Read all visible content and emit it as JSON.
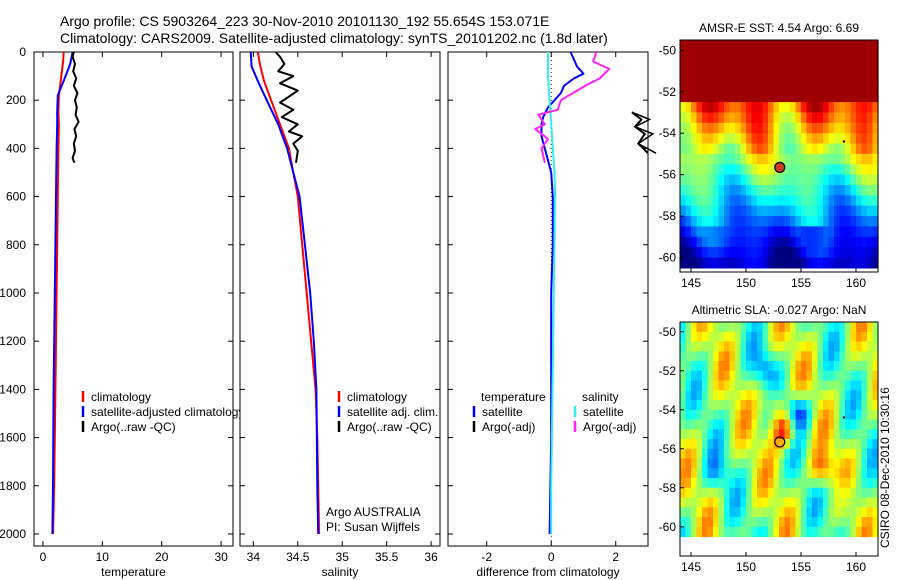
{
  "figure": {
    "title_line1": "Argo profile: CS 5903264_223 30-Nov-2010 20101130_192 55.654S 153.071E",
    "title_line2": "Climatology: CARS2009. Satellite-adjusted climatology: synTS_20101202.nc (1.8d later)",
    "footer": "CSIRO 08-Dec-2010 10:30:16"
  },
  "colors": {
    "climatology": "#ff0000",
    "satellite": "#0000ff",
    "argo": "#000000",
    "temp_satellite_diff": "#0000ff",
    "sal_satellite_diff": "#33eeee",
    "sal_argo_diff": "#ff22ff"
  },
  "chart_data": [
    {
      "id": "temperature",
      "type": "line",
      "xlabel": "temperature",
      "xlim": [
        -1.5,
        32
      ],
      "ylim": [
        2050,
        0
      ],
      "xticks": [
        0,
        10,
        20,
        30
      ],
      "yticks": [
        0,
        200,
        400,
        600,
        800,
        1000,
        1200,
        1400,
        1600,
        1800,
        2000
      ],
      "ytick_labels": [
        "0",
        "200",
        "400",
        "600",
        "800",
        "1000",
        "1200",
        "1400",
        "1600",
        "1800",
        "2000"
      ],
      "legend": [
        {
          "label": "climatology",
          "color": "#ff0000"
        },
        {
          "label": "satellite-adjusted climatology",
          "color": "#0000ff"
        },
        {
          "label": "Argo(..raw -QC)",
          "color": "#000000"
        }
      ],
      "series": [
        {
          "color": "#ff0000",
          "x": [
            3.5,
            3.4,
            3.1,
            2.7,
            2.6,
            2.7,
            2.6,
            2.5,
            2.4,
            2.3,
            2.2,
            2.1,
            2.0,
            1.9,
            1.8,
            1.7
          ],
          "y": [
            0,
            40,
            100,
            180,
            250,
            300,
            400,
            600,
            800,
            1000,
            1200,
            1400,
            1600,
            1800,
            1900,
            2000
          ]
        },
        {
          "color": "#0000ff",
          "x": [
            5.0,
            4.6,
            3.5,
            2.5,
            2.4,
            2.4,
            2.3,
            2.2,
            2.1,
            2.0,
            1.9,
            1.8,
            1.7,
            1.6
          ],
          "y": [
            0,
            50,
            120,
            180,
            250,
            300,
            400,
            600,
            800,
            1000,
            1200,
            1400,
            1800,
            2000
          ]
        },
        {
          "color": "#000000",
          "x": [
            5.2,
            5.0,
            5.4,
            5.1,
            5.6,
            5.2,
            5.8,
            5.4,
            5.7,
            5.5,
            6.0,
            5.3,
            5.6,
            5.2,
            5.4,
            5.0,
            5.3
          ],
          "y": [
            0,
            20,
            50,
            80,
            110,
            140,
            170,
            200,
            230,
            260,
            290,
            320,
            350,
            380,
            410,
            440,
            460
          ]
        }
      ]
    },
    {
      "id": "salinity",
      "type": "line",
      "xlabel": "salinity",
      "xlim": [
        33.85,
        36.1
      ],
      "ylim": [
        2050,
        0
      ],
      "xticks": [
        34,
        34.5,
        35,
        35.5,
        36
      ],
      "legend": [
        {
          "label": "climatology",
          "color": "#ff0000"
        },
        {
          "label": "satellite adj. clim.",
          "color": "#0000ff"
        },
        {
          "label": "Argo(..raw -QC)",
          "color": "#000000"
        }
      ],
      "annotations": [
        "Argo AUSTRALIA",
        "PI: Susan Wijffels"
      ],
      "series": [
        {
          "color": "#ff0000",
          "x": [
            34.05,
            34.08,
            34.12,
            34.2,
            34.3,
            34.4,
            34.45,
            34.5,
            34.55,
            34.6,
            34.65,
            34.7,
            34.72,
            34.73,
            34.74
          ],
          "y": [
            0,
            60,
            120,
            200,
            300,
            400,
            500,
            600,
            800,
            1000,
            1200,
            1400,
            1600,
            1800,
            2000
          ]
        },
        {
          "color": "#0000ff",
          "x": [
            33.97,
            33.98,
            34.05,
            34.15,
            34.28,
            34.38,
            34.45,
            34.52,
            34.58,
            34.64,
            34.68,
            34.71,
            34.72,
            34.73
          ],
          "y": [
            0,
            60,
            120,
            200,
            300,
            400,
            500,
            600,
            800,
            1000,
            1200,
            1400,
            1800,
            2000
          ]
        },
        {
          "color": "#000000",
          "x": [
            34.25,
            34.3,
            34.35,
            34.28,
            34.45,
            34.3,
            34.5,
            34.42,
            34.3,
            34.45,
            34.32,
            34.5,
            34.4,
            34.55,
            34.45,
            34.5,
            34.48
          ],
          "y": [
            0,
            20,
            50,
            80,
            100,
            130,
            160,
            180,
            210,
            240,
            270,
            300,
            330,
            350,
            380,
            410,
            460
          ]
        }
      ]
    },
    {
      "id": "difference",
      "type": "line",
      "xlabel": "difference from climatology",
      "xlim": [
        -3.2,
        3.0
      ],
      "ylim": [
        2050,
        0
      ],
      "xticks": [
        -2,
        0,
        2
      ],
      "zero_line": true,
      "legend": [
        {
          "label": "temperature",
          "color": "",
          "heading": true
        },
        {
          "label": "satellite",
          "color": "#0000ff"
        },
        {
          "label": "Argo(-adj)",
          "color": "#000000"
        },
        {
          "label": "salinity",
          "color": "",
          "heading": true
        },
        {
          "label": "satellite",
          "color": "#33eeee"
        },
        {
          "label": "Argo(-adj)",
          "color": "#ff22ff"
        }
      ],
      "series": [
        {
          "color": "#0000ff",
          "x": [
            0.6,
            0.8,
            1.0,
            0.7,
            0.4,
            0.3,
            0.1,
            -0.1,
            -0.25,
            -0.3,
            -0.3,
            -0.2,
            -0.1,
            0.0,
            0.05,
            0.05,
            0.0,
            0.0,
            -0.05
          ],
          "y": [
            0,
            60,
            90,
            110,
            140,
            170,
            200,
            230,
            270,
            300,
            350,
            400,
            450,
            500,
            600,
            800,
            1000,
            1600,
            2000
          ]
        },
        {
          "color": "#000000",
          "x": [
            2.5,
            2.8,
            2.6,
            2.9,
            2.7,
            3.0
          ],
          "y": [
            250,
            280,
            310,
            340,
            380,
            420
          ]
        },
        {
          "color": "#33eeee",
          "x": [
            -0.1,
            -0.1,
            -0.05,
            0.0,
            0.05,
            0.1,
            0.12,
            0.1,
            0.08,
            0.06,
            0.04,
            0.02,
            0.0,
            0.0
          ],
          "y": [
            0,
            100,
            200,
            300,
            400,
            500,
            600,
            800,
            1000,
            1200,
            1400,
            1600,
            1800,
            2000
          ]
        },
        {
          "color": "#ff22ff",
          "x": [
            1.4,
            1.3,
            1.8,
            1.5,
            1.2,
            0.8,
            0.3,
            0.2,
            -0.4,
            -0.2,
            -0.5,
            -0.1,
            -0.3,
            -0.2
          ],
          "y": [
            0,
            40,
            70,
            110,
            130,
            160,
            200,
            240,
            260,
            300,
            320,
            360,
            400,
            460
          ]
        }
      ]
    },
    {
      "id": "sst_map",
      "type": "heatmap",
      "title": "AMSR-E SST: 4.54 Argo: 6.69",
      "xlim": [
        144,
        162
      ],
      "ylim": [
        -60.7,
        -49.5
      ],
      "xticks": [
        145,
        150,
        155,
        160
      ],
      "yticks": [
        -50,
        -52,
        -54,
        -56,
        -58,
        -60
      ],
      "marker": {
        "lon": 153.07,
        "lat": -55.65
      },
      "data_extent_lat": [
        -60,
        -49.5
      ]
    },
    {
      "id": "sla_map",
      "type": "heatmap",
      "title": "Altimetric SLA: -0.027 Argo: NaN",
      "xlim": [
        144,
        162
      ],
      "ylim": [
        -61.5,
        -49.5
      ],
      "xticks": [
        145,
        150,
        155,
        160
      ],
      "yticks": [
        -50,
        -52,
        -54,
        -56,
        -58,
        -60
      ],
      "marker": {
        "lon": 153.07,
        "lat": -55.65
      },
      "data_extent_lat": [
        -60,
        -49.5
      ]
    }
  ]
}
